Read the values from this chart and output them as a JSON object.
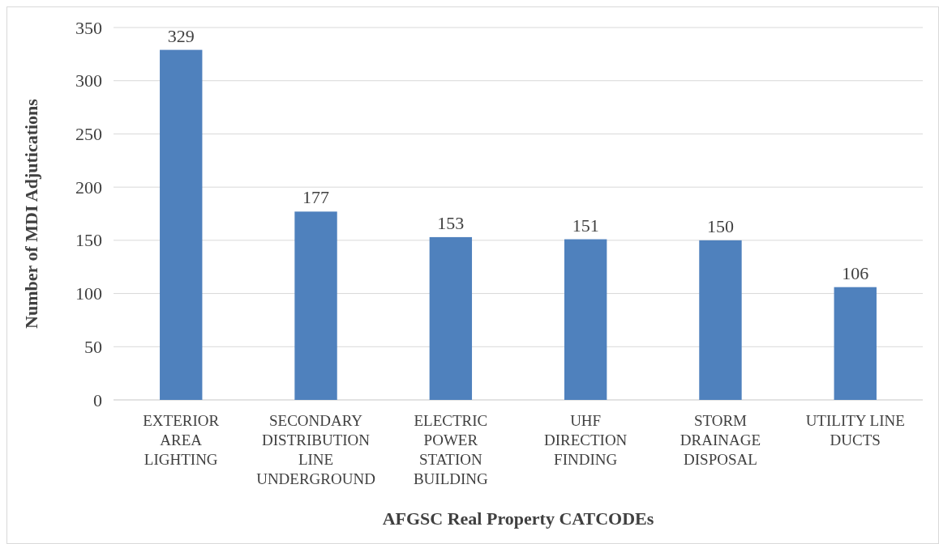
{
  "chart_data": {
    "type": "bar",
    "xlabel": "AFGSC Real Property CATCODEs",
    "ylabel": "Number of MDI Adjutications",
    "categories": [
      "EXTERIOR AREA LIGHTING",
      "SECONDARY DISTRIBUTION LINE UNDERGROUND",
      "ELECTRIC POWER STATION BUILDING",
      "UHF DIRECTION FINDING",
      "STORM DRAINAGE DISPOSAL",
      "UTILITY LINE DUCTS"
    ],
    "values": [
      329,
      177,
      153,
      151,
      150,
      106
    ],
    "color": "#4f81bd",
    "ylim": [
      0,
      350
    ],
    "yticks": [
      0,
      50,
      100,
      150,
      200,
      250,
      300,
      350
    ],
    "grid": "y",
    "data_labels": true
  }
}
